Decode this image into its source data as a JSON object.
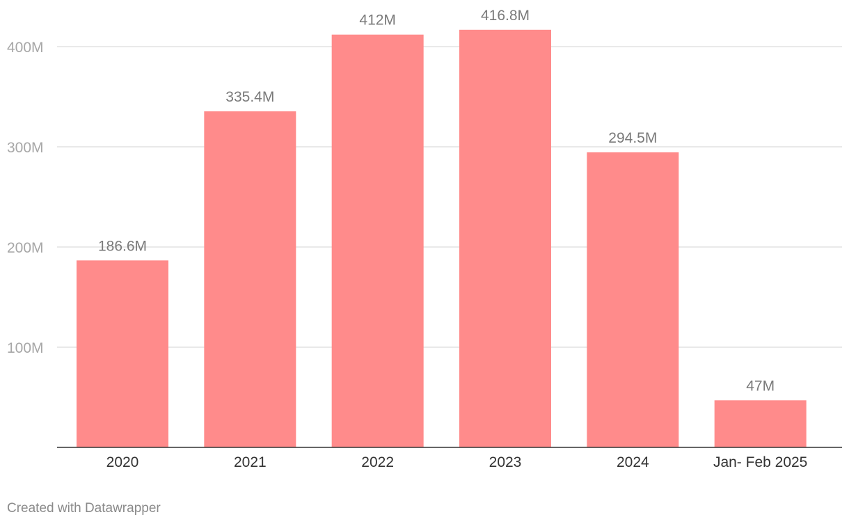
{
  "chart_data": {
    "type": "bar",
    "categories": [
      "2020",
      "2021",
      "2022",
      "2023",
      "2024",
      "Jan- Feb 2025"
    ],
    "values": [
      186.6,
      335.4,
      412,
      416.8,
      294.5,
      47
    ],
    "value_labels": [
      "186.6M",
      "335.4M",
      "412M",
      "416.8M",
      "294.5M",
      "47M"
    ],
    "y_ticks": [
      100,
      200,
      300,
      400
    ],
    "y_tick_labels": [
      "100M",
      "200M",
      "300M",
      "400M"
    ],
    "ylim": [
      0,
      435
    ],
    "grid": true,
    "bar_color": "#ff8b8b",
    "title": "",
    "xlabel": "",
    "ylabel": ""
  },
  "footer": {
    "credit": "Created with Datawrapper"
  }
}
